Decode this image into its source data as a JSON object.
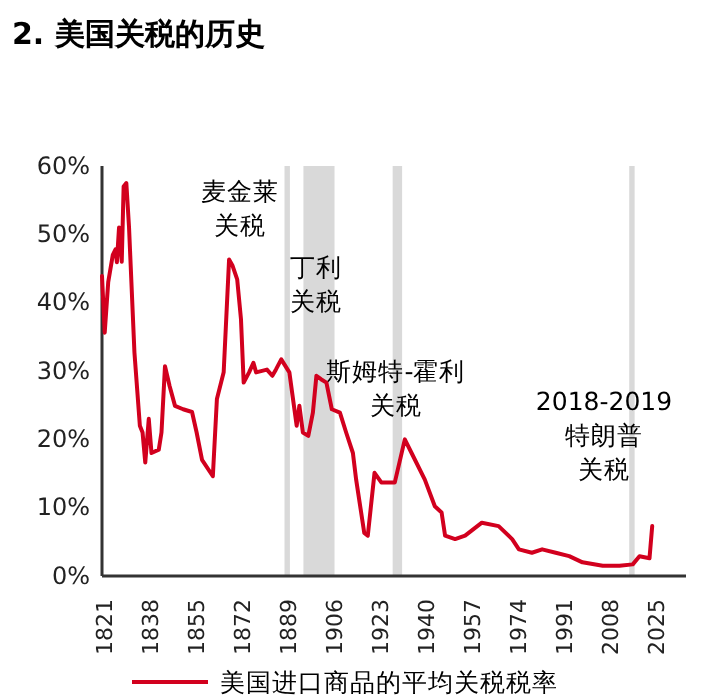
{
  "chart_data": {
    "type": "line",
    "title": "2. 美国关税的历史",
    "x": [
      1820,
      1821,
      1822.3,
      1824,
      1825,
      1825.5,
      1826.3,
      1827.3,
      1828,
      1829,
      1830,
      1832,
      1834,
      1835,
      1836,
      1837.3,
      1838.3,
      1841,
      1842,
      1843.3,
      1845,
      1847,
      1850,
      1853.3,
      1855,
      1857,
      1861,
      1862.5,
      1865,
      1867,
      1868.3,
      1870,
      1871.4,
      1872.4,
      1874.4,
      1876,
      1877,
      1881,
      1883,
      1884.3,
      1886.3,
      1889.3,
      1892,
      1893,
      1894.3,
      1896.3,
      1898,
      1899.3,
      1901,
      1903,
      1905,
      1908,
      1910.3,
      1912.8,
      1914,
      1917,
      1918.3,
      1920.8,
      1923.3,
      1925.8,
      1928.3,
      1932,
      1934.5,
      1939.4,
      1943.1,
      1945.6,
      1946.9,
      1950.6,
      1954.3,
      1960.5,
      1966.7,
      1971.7,
      1974.2,
      1979,
      1982.8,
      1987.8,
      1992.8,
      1997.7,
      2005.2,
      2011.4,
      2016.3,
      2018.8,
      2022.5,
      2023.5
    ],
    "series": [
      {
        "name": "美国进口商品的平均关税税率",
        "color": "#d2001e",
        "values": [
          43.9,
          35.6,
          43,
          47,
          47.8,
          45.9,
          51,
          46,
          57,
          57.5,
          51,
          32.7,
          22,
          21,
          16.6,
          23,
          18,
          18.5,
          21,
          30.7,
          27.8,
          24.9,
          24.4,
          24,
          21,
          17,
          14.6,
          25.9,
          29.8,
          46.3,
          45.4,
          43.4,
          37.6,
          28.3,
          29.8,
          31.2,
          29.8,
          30.2,
          29.3,
          30.2,
          31.7,
          29.8,
          22,
          24.9,
          21,
          20.5,
          23.9,
          29.3,
          28.8,
          28.3,
          24.4,
          23.9,
          21,
          18,
          14.1,
          6.3,
          5.9,
          15.1,
          13.7,
          13.7,
          13.7,
          20,
          18,
          14.1,
          10.2,
          9.3,
          5.9,
          5.4,
          5.9,
          7.8,
          7.3,
          5.4,
          3.9,
          3.4,
          3.9,
          3.4,
          2.9,
          2,
          1.5,
          1.5,
          1.7,
          2.9,
          2.6,
          7.3
        ]
      }
    ],
    "xlim": [
      1820,
      2036
    ],
    "xticks": [
      1821,
      1838,
      1855,
      1872,
      1889,
      1906,
      1923,
      1940,
      1957,
      1974,
      1991,
      2008,
      2025
    ],
    "ylim": [
      0,
      60
    ],
    "yticks": [
      {
        "value": 0,
        "label": "0%"
      },
      {
        "value": 10,
        "label": "10%"
      },
      {
        "value": 20,
        "label": "20%"
      },
      {
        "value": 30,
        "label": "30%"
      },
      {
        "value": 40,
        "label": "40%"
      },
      {
        "value": 50,
        "label": "50%"
      },
      {
        "value": 60,
        "label": "60%"
      }
    ],
    "bands": [
      {
        "axis": "x",
        "from": 1887.5,
        "to": 1889.5,
        "label": "麦金莱关税",
        "color": "#d9d9d9"
      },
      {
        "axis": "x",
        "from": 1894.5,
        "to": 1906,
        "label": "丁利关税",
        "color": "#d9d9d9"
      },
      {
        "axis": "x",
        "from": 1927.5,
        "to": 1931,
        "label": "斯姆特-霍利关税",
        "color": "#d9d9d9"
      },
      {
        "axis": "x",
        "from": 2015,
        "to": 2017,
        "label": "2018-2019特朗普关税",
        "color": "#d9d9d9"
      }
    ],
    "legend": "bottom",
    "grid": false
  }
}
